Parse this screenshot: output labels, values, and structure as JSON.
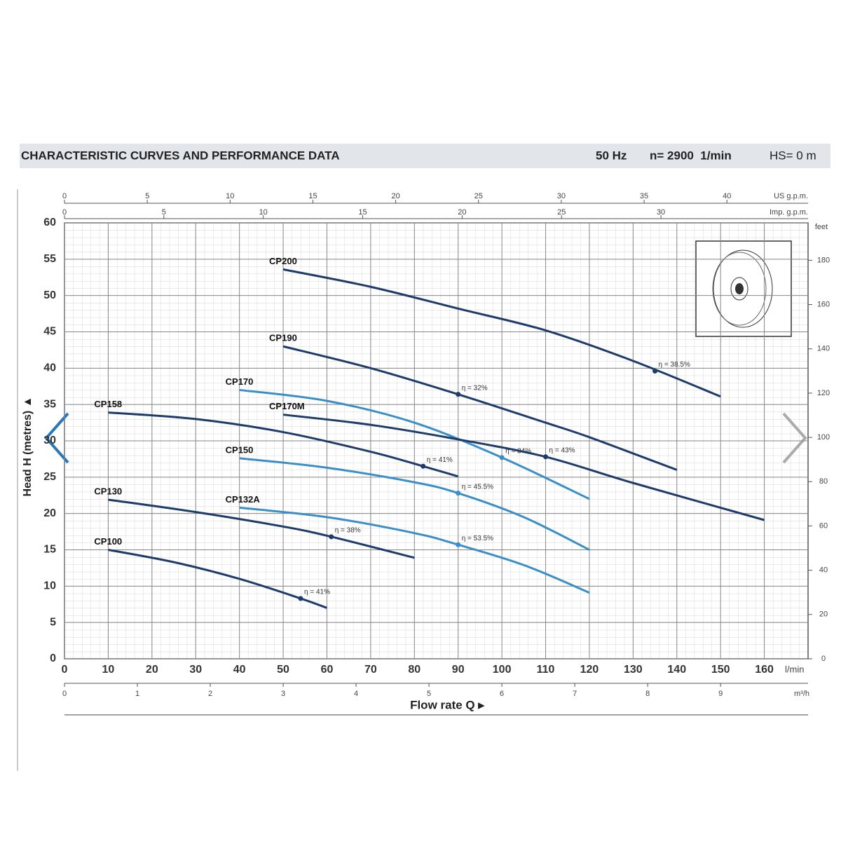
{
  "chart_data": {
    "type": "line",
    "title": "CHARACTERISTIC CURVES AND PERFORMANCE DATA",
    "frequency": "50 Hz",
    "speed": "n= 2900  1/min",
    "suction": "HS= 0 m",
    "y_label": "Head H (metres) ▲",
    "x_label": "Flow rate Q ▸",
    "x_unit": "l/min",
    "xlim": [
      0,
      170
    ],
    "xticks": [
      0,
      10,
      20,
      30,
      40,
      50,
      60,
      70,
      80,
      90,
      100,
      110,
      120,
      130,
      140,
      150,
      160
    ],
    "ylim": [
      0,
      60
    ],
    "yticks": [
      0,
      5,
      10,
      15,
      20,
      25,
      30,
      35,
      40,
      45,
      50,
      55,
      60
    ],
    "grid": true,
    "top_axes": [
      {
        "label": "US g.p.m.",
        "lim": [
          0,
          44.9
        ],
        "ticks": [
          0,
          5,
          10,
          15,
          20,
          25,
          30,
          35,
          40
        ]
      },
      {
        "label": "Imp. g.p.m.",
        "lim": [
          0,
          37.4
        ],
        "ticks": [
          0,
          5,
          10,
          15,
          20,
          25,
          30
        ]
      }
    ],
    "bottom_axis": {
      "label": "m³/h",
      "lim": [
        0,
        10.2
      ],
      "ticks": [
        0,
        1,
        2,
        3,
        4,
        5,
        6,
        7,
        8,
        9
      ]
    },
    "right_axis": {
      "label": "feet",
      "lim": [
        0,
        196.9
      ],
      "ticks": [
        0,
        20,
        40,
        60,
        80,
        100,
        120,
        140,
        160,
        180
      ]
    },
    "series": [
      {
        "name": "CP200",
        "color": "#1d3c6b",
        "x": [
          50,
          70,
          90,
          110,
          130,
          150
        ],
        "values": [
          53.6,
          51.2,
          48.2,
          45.2,
          41.0,
          36.1
        ],
        "eff_x": 135,
        "eff_y": 39.6,
        "eff_label": "η = 38.5%"
      },
      {
        "name": "CP190",
        "color": "#1d3c6b",
        "x": [
          50,
          70,
          90,
          110,
          120,
          140
        ],
        "values": [
          43.0,
          40.0,
          36.4,
          32.5,
          30.5,
          26.0
        ],
        "eff_x": 90,
        "eff_y": 36.4,
        "eff_label": "η = 32%"
      },
      {
        "name": "CP170",
        "color": "#3a8fc8",
        "x": [
          40,
          60,
          80,
          100,
          120
        ],
        "values": [
          37.0,
          35.5,
          32.5,
          27.7,
          22.0
        ],
        "eff_x": 100,
        "eff_y": 27.7,
        "eff_label": "η = 34%"
      },
      {
        "name": "CP170M",
        "color": "#1d3c6b",
        "x": [
          50,
          70,
          90,
          110,
          130,
          160
        ],
        "values": [
          33.6,
          32.2,
          30.2,
          27.8,
          24.2,
          19.1
        ],
        "eff_x": 110,
        "eff_y": 27.8,
        "eff_label": "η = 43%"
      },
      {
        "name": "CP158",
        "color": "#1d3c6b",
        "x": [
          10,
          30,
          50,
          70,
          82,
          90
        ],
        "values": [
          33.9,
          33.0,
          31.2,
          28.5,
          26.5,
          25.1
        ],
        "eff_x": 82,
        "eff_y": 26.5,
        "eff_label": "η = 41%"
      },
      {
        "name": "CP150",
        "color": "#3a8fc8",
        "x": [
          40,
          60,
          80,
          90,
          105,
          120
        ],
        "values": [
          27.6,
          26.3,
          24.3,
          22.8,
          19.5,
          15.0
        ],
        "eff_x": 90,
        "eff_y": 22.8,
        "eff_label": "η = 45.5%"
      },
      {
        "name": "CP130",
        "color": "#1d3c6b",
        "x": [
          10,
          30,
          50,
          61,
          80
        ],
        "values": [
          21.9,
          20.2,
          18.2,
          16.8,
          13.9
        ],
        "eff_x": 61,
        "eff_y": 16.8,
        "eff_label": "η = 38%"
      },
      {
        "name": "CP132A",
        "color": "#3a8fc8",
        "x": [
          40,
          60,
          80,
          90,
          105,
          120
        ],
        "values": [
          20.8,
          19.5,
          17.3,
          15.7,
          12.9,
          9.1
        ],
        "eff_x": 90,
        "eff_y": 15.7,
        "eff_label": "η = 53.5%"
      },
      {
        "name": "CP100",
        "color": "#1d3c6b",
        "x": [
          10,
          25,
          40,
          54,
          60
        ],
        "values": [
          15.0,
          13.3,
          11.0,
          8.3,
          7.0
        ],
        "eff_x": 54,
        "eff_y": 8.3,
        "eff_label": "η = 41%"
      }
    ]
  }
}
